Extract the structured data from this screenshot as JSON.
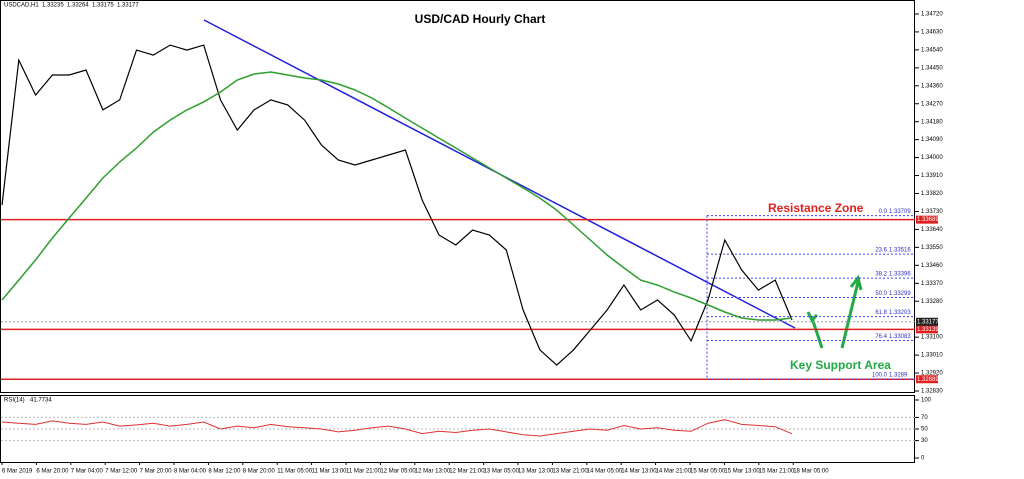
{
  "chart_data": {
    "type": "line",
    "title": "USD/CAD Hourly Chart",
    "symbol": "USDCAD,H1",
    "ohlc": [
      1.33235,
      1.33264,
      1.33175,
      1.33177
    ],
    "series": [
      {
        "color": "#000000",
        "values": [
          1.33762,
          1.34489,
          1.34314,
          1.34414,
          1.34414,
          1.34439,
          1.34239,
          1.34289,
          1.34539,
          1.34514,
          1.34564,
          1.34539,
          1.34564,
          1.34289,
          1.34138,
          1.34239,
          1.34289,
          1.34264,
          1.34188,
          1.34063,
          1.33988,
          1.33963,
          1.33988,
          1.34013,
          1.34038,
          1.33787,
          1.33612,
          1.33562,
          1.33637,
          1.33612,
          1.33537,
          1.33236,
          1.33036,
          1.3296,
          1.33036,
          1.33136,
          1.33236,
          1.33361,
          1.33236,
          1.33286,
          1.33211,
          1.33081,
          1.33286,
          1.33587,
          1.33437,
          1.33336,
          1.33386,
          1.33186
        ]
      },
      {
        "color": "#2e9e2e",
        "values": [
          1.33286,
          1.33386,
          1.33487,
          1.33597,
          1.33697,
          1.33797,
          1.33898,
          1.33978,
          1.34048,
          1.34128,
          1.34188,
          1.34239,
          1.34279,
          1.34329,
          1.34389,
          1.34419,
          1.34429,
          1.34414,
          1.34399,
          1.34389,
          1.34369,
          1.34339,
          1.34299,
          1.34249,
          1.34198,
          1.34148,
          1.34098,
          1.34048,
          1.33998,
          1.33948,
          1.33898,
          1.33848,
          1.33797,
          1.33737,
          1.33662,
          1.33587,
          1.33512,
          1.33447,
          1.33386,
          1.33361,
          1.33326,
          1.33296,
          1.33261,
          1.33226,
          1.33196,
          1.33186,
          1.33186,
          1.33196
        ]
      }
    ],
    "ylim": [
      1.3282,
      1.3478
    ],
    "yticks": [
      {
        "value": 1.3472,
        "label": "1.34720"
      },
      {
        "value": 1.3463,
        "label": "1.34630"
      },
      {
        "value": 1.3454,
        "label": "1.34540"
      },
      {
        "value": 1.3445,
        "label": "1.34450"
      },
      {
        "value": 1.3436,
        "label": "1.34360"
      },
      {
        "value": 1.3427,
        "label": "1.34270"
      },
      {
        "value": 1.3418,
        "label": "1.34180"
      },
      {
        "value": 1.3409,
        "label": "1.34090"
      },
      {
        "value": 1.34,
        "label": "1.34000"
      },
      {
        "value": 1.3391,
        "label": "1.33910"
      },
      {
        "value": 1.3382,
        "label": "1.33820"
      },
      {
        "value": 1.3373,
        "label": "1.33730"
      },
      {
        "value": 1.3364,
        "label": "1.33640"
      },
      {
        "value": 1.3355,
        "label": "1.33550"
      },
      {
        "value": 1.3346,
        "label": "1.33460"
      },
      {
        "value": 1.3337,
        "label": "1.33370"
      },
      {
        "value": 1.3328,
        "label": "1.33280"
      },
      {
        "value": 1.331,
        "label": "1.33100"
      },
      {
        "value": 1.3301,
        "label": "1.33010"
      },
      {
        "value": 1.3292,
        "label": "1.32920"
      },
      {
        "value": 1.3283,
        "label": "1.32830"
      }
    ],
    "levels": [
      {
        "price": 1.33689,
        "color": "#e02020"
      },
      {
        "price": 1.33139,
        "color": "#e02020"
      },
      {
        "price": 1.32889,
        "color": "#e02020"
      }
    ],
    "current_price": 1.33177,
    "fib": [
      {
        "level": {
          "value": 0,
          "label": "0.0"
        },
        "price": 1.33709
      },
      {
        "level": 23.6,
        "price": 1.33516
      },
      {
        "level": 38.2,
        "price": 1.33396
      },
      {
        "level": {
          "value": 50,
          "label": "50.0"
        },
        "price": 1.33299
      },
      {
        "level": 61.8,
        "price": 1.33203
      },
      {
        "level": 76.4,
        "price": 1.33083
      },
      {
        "level": {
          "value": 100,
          "label": "100.0"
        },
        "price": 1.3289
      }
    ],
    "annotations": [
      "Resistance Zone",
      "Key Support Area"
    ],
    "rsi": {
      "label": "RSI(14)",
      "current": 41.7734,
      "color": "#e03030",
      "values": [
        62,
        60,
        58,
        64,
        60,
        58,
        62,
        55,
        57,
        60,
        55,
        58,
        62,
        50,
        55,
        52,
        58,
        54,
        52,
        50,
        45,
        48,
        52,
        55,
        50,
        42,
        46,
        44,
        48,
        50,
        45,
        40,
        38,
        42,
        46,
        50,
        48,
        56,
        50,
        52,
        48,
        46,
        60,
        66,
        58,
        56,
        54,
        41.7734
      ],
      "ylim": [
        0,
        100
      ],
      "yticks": [
        100,
        70,
        50,
        30,
        0
      ]
    },
    "xtick_labels": [
      "6 Mar 2019",
      "6 Mar 20:00",
      "7 Mar 04:00",
      "7 Mar 12:00",
      "7 Mar 20:00",
      "8 Mar 04:00",
      "8 Mar 12:00",
      "8 Mar 20:00",
      "11 Mar 05:00",
      "11 Mar 13:00",
      "11 Mar 21:00",
      "12 Mar 05:00",
      "12 Mar 13:00",
      "12 Mar 21:00",
      "13 Mar 05:00",
      "13 Mar 13:00",
      "13 Mar 21:00",
      "14 Mar 05:00",
      "14 Mar 13:00",
      "14 Mar 21:00",
      "15 Mar 05:00",
      "15 Mar 13:00",
      "15 Mar 21:00",
      "18 Mar 05:00"
    ]
  }
}
